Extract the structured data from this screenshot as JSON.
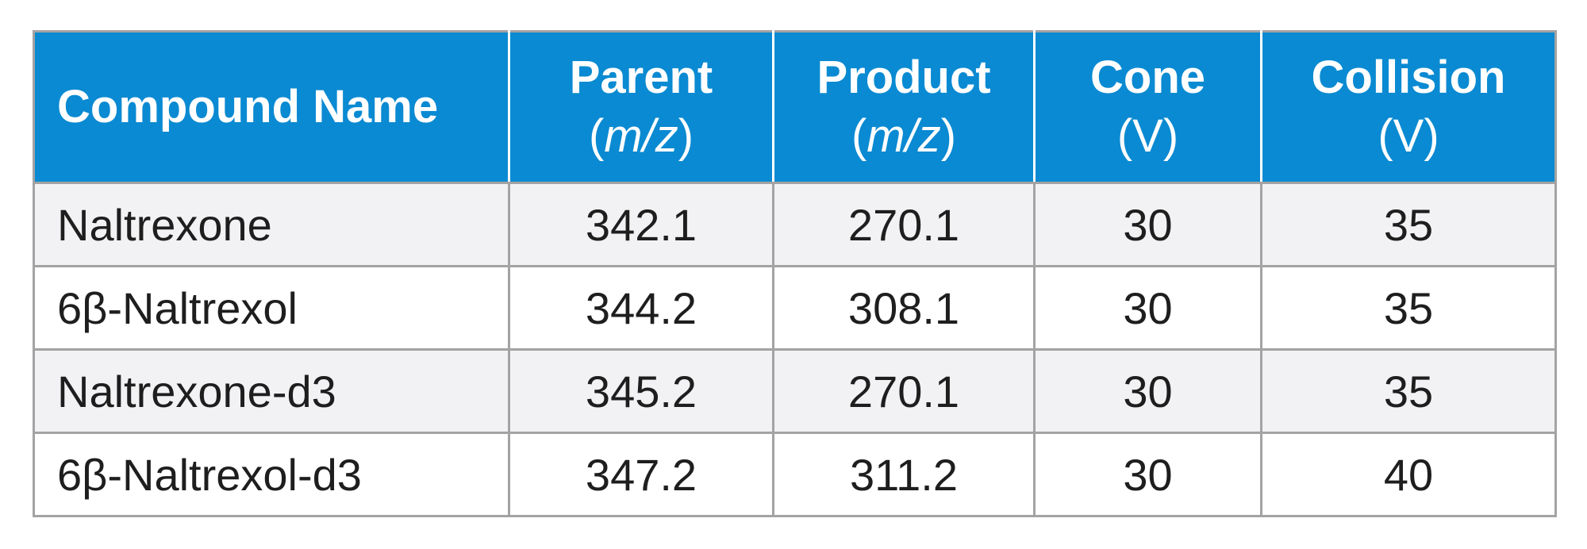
{
  "table": {
    "header": [
      {
        "text": "Compound Name"
      },
      {
        "text": "Parent",
        "unit": [
          "(",
          "m/z",
          ")"
        ]
      },
      {
        "text": "Product",
        "unit": [
          "(",
          "m/z",
          ")"
        ]
      },
      {
        "text": "Cone",
        "unit": [
          "(V)"
        ]
      },
      {
        "text": "Collision",
        "unit": [
          "(V)"
        ]
      }
    ],
    "rows": [
      [
        "Naltrexone",
        "342.1",
        "270.1",
        "30",
        "35"
      ],
      [
        "6β-Naltrexol",
        "344.2",
        "308.1",
        "30",
        "35"
      ],
      [
        "Naltrexone-d3",
        "345.2",
        "270.1",
        "30",
        "35"
      ],
      [
        "6β-Naltrexol-d3",
        "347.2",
        "311.2",
        "30",
        "40"
      ]
    ]
  }
}
